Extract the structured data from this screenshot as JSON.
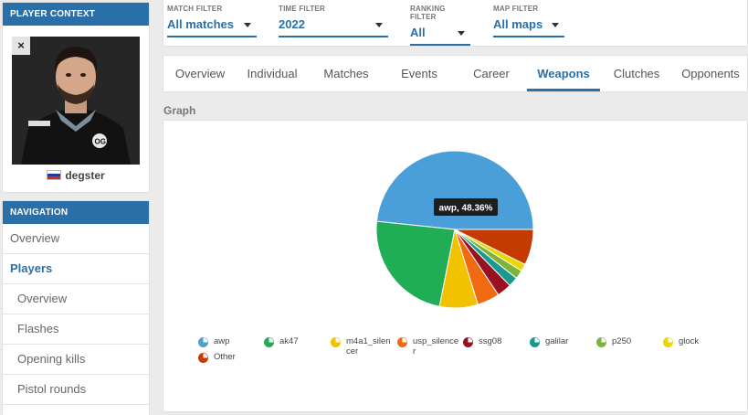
{
  "player_context": {
    "header": "PLAYER CONTEXT",
    "close_label": "×",
    "player_name": "degster"
  },
  "navigation": {
    "header": "NAVIGATION",
    "items": [
      {
        "label": "Overview",
        "type": "top"
      },
      {
        "label": "Players",
        "type": "top-active"
      },
      {
        "label": "Overview",
        "type": "sub"
      },
      {
        "label": "Flashes",
        "type": "sub"
      },
      {
        "label": "Opening kills",
        "type": "sub"
      },
      {
        "label": "Pistol rounds",
        "type": "sub"
      }
    ]
  },
  "filters": [
    {
      "label": "MATCH FILTER",
      "value": "All matches"
    },
    {
      "label": "TIME FILTER",
      "value": "2022"
    },
    {
      "label": "RANKING FILTER",
      "value": "All"
    },
    {
      "label": "MAP FILTER",
      "value": "All maps"
    }
  ],
  "tabs": [
    "Overview",
    "Individual",
    "Matches",
    "Events",
    "Career",
    "Weapons",
    "Clutches",
    "Opponents"
  ],
  "active_tab": "Weapons",
  "section_title": "Graph",
  "tooltip": "awp, 48.36%",
  "colors": {
    "accent": "#2a6fa8"
  },
  "chart_data": {
    "type": "pie",
    "title": "",
    "slices": [
      {
        "label": "awp",
        "value": 48.36,
        "color": "#4a9fd8"
      },
      {
        "label": "ak47",
        "value": 23.5,
        "color": "#1fae55"
      },
      {
        "label": "m4a1_silencer",
        "value": 7.9,
        "color": "#f2c200"
      },
      {
        "label": "usp_silencer",
        "value": 4.6,
        "color": "#f26a0f"
      },
      {
        "label": "ssg08",
        "value": 3.0,
        "color": "#9b1020"
      },
      {
        "label": "galilar",
        "value": 2.0,
        "color": "#1a9a8e"
      },
      {
        "label": "p250",
        "value": 1.8,
        "color": "#7bb43a"
      },
      {
        "label": "glock",
        "value": 1.5,
        "color": "#ecd600"
      },
      {
        "label": "Other",
        "value": 7.34,
        "color": "#c43a00"
      }
    ],
    "legend_placement": "bottom"
  }
}
